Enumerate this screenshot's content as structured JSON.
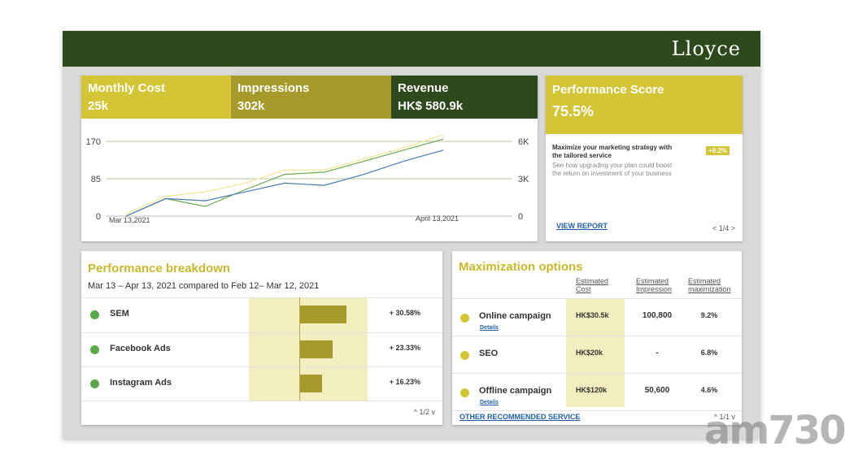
{
  "brand": {
    "logo": "Lloyce"
  },
  "kpis": {
    "cost": {
      "label": "Monthly Cost",
      "value": "25k"
    },
    "impressions": {
      "label": "Impressions",
      "value": "302k"
    },
    "revenue": {
      "label": "Revenue",
      "value": "HK$ 580.9k"
    }
  },
  "chart_data": {
    "type": "line",
    "x_start_label": "Mar 13,2021",
    "x_end_label": "April 13,2021",
    "left_ticks": [
      "0",
      "85",
      "170"
    ],
    "right_ticks": [
      "0",
      "3K",
      "6K"
    ],
    "ylim_left": [
      0,
      170
    ],
    "ylim_right": [
      0,
      6000
    ],
    "grid": true,
    "series": [
      {
        "color": "#f0e68c",
        "values": [
          5,
          45,
          55,
          75,
          105,
          105,
          130,
          155,
          185
        ]
      },
      {
        "color": "#6aa84f",
        "values": [
          0,
          40,
          22,
          60,
          95,
          100,
          125,
          150,
          175
        ]
      },
      {
        "color": "#4a7ab5",
        "values": [
          0,
          40,
          35,
          55,
          75,
          70,
          95,
          125,
          150
        ]
      }
    ]
  },
  "score": {
    "title": "Performance Score",
    "value": "75.5%",
    "promo": "Maximize your marketing strategy with the tailored service",
    "badge": "+9.2%",
    "description": "See how upgrading your plan could boost the return on investment of your business",
    "link": "VIEW REPORT",
    "pager": "< 1/4 >"
  },
  "breakdown": {
    "title": "Performance breakdown",
    "subtitle": "Mar 13 – Apr 13, 2021 compared to Feb 12– Mar 12, 2021",
    "rows": [
      {
        "name": "SEM",
        "pct": "+ 30.58%",
        "value": 30.58
      },
      {
        "name": "Facebook Ads",
        "pct": "+ 23.33%",
        "value": 23.33
      },
      {
        "name": "Instagram Ads",
        "pct": "+ 16.23%",
        "value": 16.23
      }
    ],
    "pager": "^ 1/2 v"
  },
  "maximization": {
    "title": "Maximization options",
    "columns": {
      "cost": "Estimated Cost",
      "impression": "Estimated Impression",
      "maximization": "Estimated maximization"
    },
    "rows": [
      {
        "name": "Online campaign",
        "details": "Details",
        "cost": "HK$30.5k",
        "impression": "100,800",
        "maximization": "9.2%"
      },
      {
        "name": "SEO",
        "details": "",
        "cost": "HK$20k",
        "impression": "-",
        "maximization": "6.8%"
      },
      {
        "name": "Offline campaign",
        "details": "Details",
        "cost": "HK$120k",
        "impression": "50,600",
        "maximization": "4.6%"
      }
    ],
    "link": "OTHER RECOMMENDED SERVICE",
    "pager": "^ 1/1 v"
  },
  "watermark": "am730"
}
